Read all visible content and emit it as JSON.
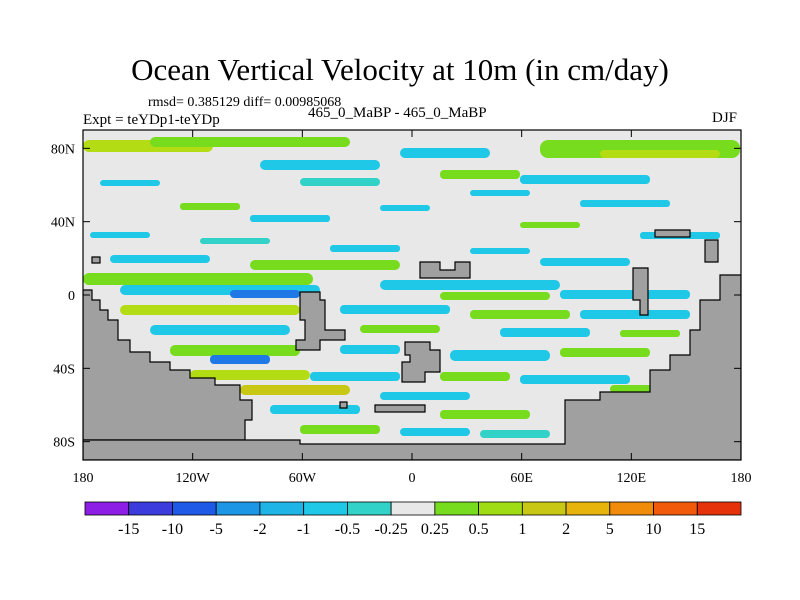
{
  "header": {
    "title": "Ocean Vertical Velocity at 10m (in cm/day)",
    "stats": "rmsd= 0.385129  diff= 0.00985068",
    "expt": "Expt = teYDp1-teYDp",
    "center": "465_0_MaBP - 465_0_MaBP",
    "season": "DJF"
  },
  "colors": {
    "land": "#a0a0a0",
    "background": "#e8e8e8",
    "cyan": "#1ec8e6",
    "teal": "#32d2c8",
    "green": "#78dc1e",
    "yellowgreen": "#b4dc14",
    "olive": "#c8c814",
    "blue": "#1e78e6"
  },
  "chart_data": {
    "type": "heatmap",
    "title": "Ocean Vertical Velocity at 10m (in cm/day)",
    "xlabel": "",
    "ylabel": "",
    "xlim": [
      -180,
      180
    ],
    "ylim": [
      -90,
      90
    ],
    "x_ticks": [
      {
        "value": -180,
        "label": "180"
      },
      {
        "value": -120,
        "label": "120W"
      },
      {
        "value": -60,
        "label": "60W"
      },
      {
        "value": 0,
        "label": "0"
      },
      {
        "value": 60,
        "label": "60E"
      },
      {
        "value": 120,
        "label": "120E"
      },
      {
        "value": 180,
        "label": "180"
      }
    ],
    "y_ticks": [
      {
        "value": 80,
        "label": "80N"
      },
      {
        "value": 40,
        "label": "40N"
      },
      {
        "value": 0,
        "label": "0"
      },
      {
        "value": -40,
        "label": "40S"
      },
      {
        "value": -80,
        "label": "80S"
      }
    ],
    "colorbar": {
      "labels": [
        "-15",
        "-10",
        "-5",
        "-2",
        "-1",
        "-0.5",
        "-0.25",
        "0.25",
        "0.5",
        "1",
        "2",
        "5",
        "10",
        "15"
      ],
      "colors": [
        "#8c1ee6",
        "#3c3cdc",
        "#1e5ae6",
        "#1e96e6",
        "#1eb4e6",
        "#1ec8e6",
        "#32d2c8",
        "#e8e8e8",
        "#78dc1e",
        "#a0dc14",
        "#c8c814",
        "#e6b40a",
        "#f08c0a",
        "#f05a0a",
        "#e6320a"
      ]
    }
  }
}
